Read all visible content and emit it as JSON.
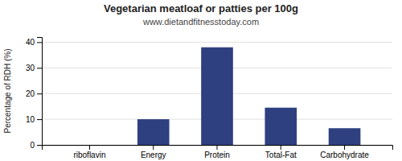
{
  "chart_data": {
    "type": "bar",
    "title": "Vegetarian meatloaf or patties per 100g",
    "subtitle": "www.dietandfitnesstoday.com",
    "categories": [
      "riboflavin",
      "Energy",
      "Protein",
      "Total-Fat",
      "Carbohydrate"
    ],
    "values": [
      0,
      10,
      38,
      14.5,
      6.5
    ],
    "color": "#2e4080",
    "ylabel": "Percentage of RDH (%)",
    "ylim": [
      0,
      42
    ],
    "yticks": [
      0,
      10,
      20,
      30,
      40
    ],
    "grid": true
  }
}
